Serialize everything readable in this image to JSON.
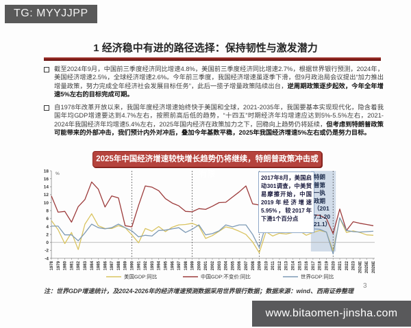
{
  "badge": {
    "text": "TG: MYYJJPP"
  },
  "footer_bar": {
    "url": "www.bitaomen-jinsha.com"
  },
  "slide": {
    "title": "1 经济稳中有进的路径选择：保持韧性与激发潜力",
    "bullets": [
      {
        "text_normal": "截至2024年9月，中国前三季度经济同比增速4.8%，美国前三季度经济同比增速2.7%，根据世界银行预测，2024年，美国经济增速2.5%，全球经济增速2.6%。今年前三季度，我国经济增速虽逐季下滑，但9月政治局会议提出“加力推出增量政策，努力完成全年经济社会发展目标任务”，此后一揽子增量政策陆续出台，",
        "text_bold": "逆周期政策逐步起效，今年全年增速5%左右的目标完成可期。"
      },
      {
        "text_normal": "自1978年改革开放以来，我国年度经济增速始终快于美国和全球，2021-2035年，我国要基本实现现代化，隐含着我国年均GDP增速要达到4.7%左右，按照前高后低的趋势，“十四五”时期经济年均增速应达到5%-5.5%左右，2021-2024年我国经济年均增速5.4%左右，2025年国内经济在政策加力之下，回稳向上趋势仍将延续，",
        "text_bold": "但考虑到特朗普政策可能带来的外部冲击，我们预计内外对冲后，叠加今年基数平稳，2025年我国经济增速5%左右或仍是努力目标。"
      }
    ],
    "banner": "2025年中国经济增速较快增长趋势仍将继续，特朗普政策冲击或有限",
    "note": "注：世界GDP增速统计，及2024-2026年的经济增速预测数据采用世界银行数据；数据来源：wind、西南证券整理",
    "page_number": "3"
  },
  "chart_data": {
    "type": "line",
    "title": "",
    "xlabel": "",
    "ylabel": "%",
    "ylim": [
      -4,
      18
    ],
    "ytick_step": 2,
    "grid": false,
    "legend_position": "bottom",
    "categories": [
      "1978",
      "1979",
      "1980",
      "1981",
      "1982",
      "1983",
      "1984",
      "1985",
      "1986",
      "1987",
      "1988",
      "1989",
      "1990",
      "1991",
      "1992",
      "1993",
      "1994",
      "1995",
      "1996",
      "1997",
      "1998",
      "1999",
      "2000",
      "2001",
      "2002",
      "2003",
      "2004",
      "2005",
      "2006",
      "2007",
      "2008",
      "2009",
      "2010",
      "2011",
      "2012",
      "2013",
      "2014",
      "2015",
      "2016",
      "2017",
      "2018",
      "2019",
      "2020",
      "2021",
      "2022",
      "2023",
      "2024E",
      "2025E",
      "2026E"
    ],
    "series": [
      {
        "name": "美国GDP:同比",
        "color": "#d9c35f",
        "values": [
          5.5,
          3.2,
          -0.3,
          2.5,
          -1.8,
          4.6,
          7.2,
          4.2,
          3.5,
          3.5,
          4.2,
          3.7,
          1.9,
          -0.1,
          3.5,
          2.8,
          4.0,
          2.7,
          3.8,
          4.4,
          4.5,
          4.8,
          4.1,
          1.0,
          1.7,
          2.8,
          3.9,
          3.5,
          2.8,
          2.0,
          0.1,
          -2.6,
          2.7,
          1.6,
          2.3,
          2.1,
          2.5,
          2.9,
          1.8,
          2.5,
          3.0,
          2.6,
          -2.2,
          6.1,
          2.5,
          2.9,
          2.5,
          1.9,
          1.8
        ]
      },
      {
        "name": "中国GDP:不变价:同比",
        "color": "#9c3a3a",
        "values": [
          11.7,
          7.6,
          7.8,
          5.1,
          9.0,
          10.8,
          15.2,
          13.4,
          8.9,
          11.7,
          11.2,
          4.2,
          3.9,
          9.3,
          14.2,
          13.9,
          13.0,
          11.0,
          9.9,
          9.2,
          7.8,
          7.7,
          8.5,
          8.3,
          9.1,
          10.0,
          10.1,
          11.4,
          12.7,
          14.2,
          9.7,
          9.4,
          10.6,
          9.6,
          7.9,
          7.8,
          7.4,
          7.0,
          6.9,
          6.9,
          6.8,
          6.0,
          2.2,
          8.4,
          3.0,
          5.2,
          4.8,
          4.5,
          4.2
        ]
      },
      {
        "name": "世界GDP:同比",
        "color": "#7d9ab5",
        "values": [
          4.1,
          4.1,
          1.9,
          1.9,
          0.4,
          2.4,
          4.6,
          3.7,
          3.4,
          3.7,
          4.6,
          3.7,
          2.9,
          1.4,
          1.8,
          1.6,
          3.0,
          3.1,
          3.4,
          3.7,
          2.5,
          3.3,
          4.4,
          1.9,
          2.2,
          2.9,
          4.4,
          3.9,
          4.4,
          4.4,
          2.0,
          -1.3,
          4.5,
          3.3,
          2.7,
          2.8,
          3.1,
          3.1,
          2.8,
          3.4,
          3.3,
          2.6,
          -2.9,
          6.2,
          3.0,
          2.7,
          2.6,
          2.7,
          2.8
        ]
      }
    ],
    "dashed_vlines": [
      "1990",
      "1999",
      "2009",
      "2020"
    ],
    "shaded_band": {
      "from": "2017",
      "to": "2020",
      "color": "#c5d3e4"
    },
    "annotations": [
      {
        "text": "2017年8月，美国启动301调查，中美贸易摩擦开始，中国2019年经济增速5.95%，较2017年下滑1个百分点"
      },
      {
        "text": "特朗普第一执政期（2017.1-2021.1）"
      }
    ]
  }
}
